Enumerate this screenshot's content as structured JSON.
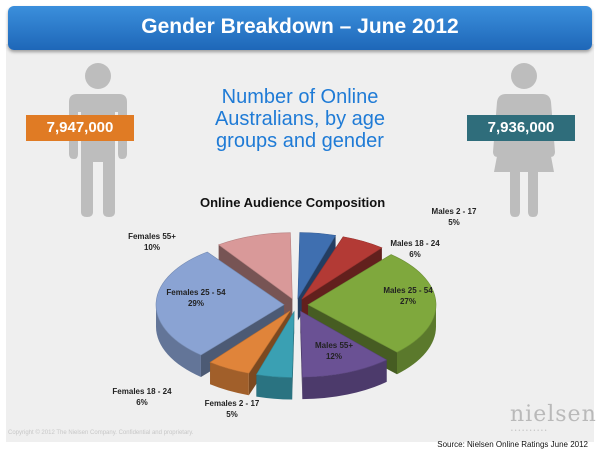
{
  "header": {
    "title": "Gender Breakdown – June 2012"
  },
  "headline": {
    "line1": "Number of Online",
    "line2": "Australians, by age",
    "line3": "groups and gender"
  },
  "badges": {
    "male_total": "7,947,000",
    "female_total": "7,936,000"
  },
  "icons": {
    "male": "male-figure-icon",
    "female": "female-figure-icon"
  },
  "colors": {
    "header": "#1e67b8",
    "headline": "#1f7bd6",
    "male_badge": "#e07b24",
    "female_badge": "#2f6d7b",
    "figure": "#bdbdbd"
  },
  "chart_data": {
    "type": "pie",
    "style": "3D exploded",
    "title": "Online Audience Composition",
    "slices": [
      {
        "label": "Males 2 - 17",
        "value": 5,
        "value_label": "5%",
        "color": "#3f6fb0"
      },
      {
        "label": "Males 18 - 24",
        "value": 6,
        "value_label": "6%",
        "color": "#b33a35"
      },
      {
        "label": "Males 25 - 54",
        "value": 27,
        "value_label": "27%",
        "color": "#7fa83d"
      },
      {
        "label": "Males 55+",
        "value": 12,
        "value_label": "12%",
        "color": "#6a5194"
      },
      {
        "label": "Females 2 - 17",
        "value": 5,
        "value_label": "5%",
        "color": "#3aa0b3"
      },
      {
        "label": "Females 18 - 24",
        "value": 6,
        "value_label": "6%",
        "color": "#e0843a"
      },
      {
        "label": "Females 25 - 54",
        "value": 29,
        "value_label": "29%",
        "color": "#8aa3d3"
      },
      {
        "label": "Females 55+",
        "value": 10,
        "value_label": "10%",
        "color": "#d99999"
      }
    ]
  },
  "source": "Source: Nielsen Online Ratings June 2012",
  "copyright": "Copyright © 2012 The Nielsen Company. Confidential and proprietary.",
  "logo": "nielsen",
  "logo_dots": "••••••••••"
}
